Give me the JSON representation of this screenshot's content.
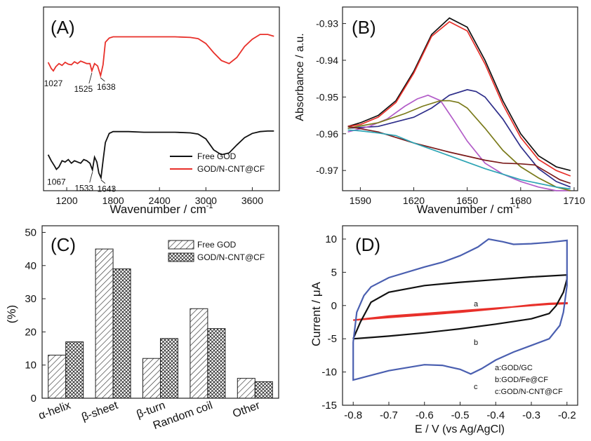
{
  "chart_data": [
    {
      "panel": "(A)",
      "type": "line",
      "xlabel": "Wavenumber / cm",
      "xlabel_sup": "-1",
      "xlim": [
        900,
        3950
      ],
      "x_ticks": [
        1200,
        1800,
        2400,
        3000,
        3600
      ],
      "y_ticks_shown": false,
      "legend_position": "bottom-right",
      "series": [
        {
          "name": "Free GOD",
          "color": "#111111",
          "x": [
            960,
            1000,
            1040,
            1067,
            1100,
            1140,
            1180,
            1220,
            1260,
            1300,
            1340,
            1380,
            1420,
            1460,
            1500,
            1533,
            1560,
            1590,
            1615,
            1643,
            1670,
            1700,
            1750,
            1800,
            1900,
            2000,
            2200,
            2400,
            2600,
            2800,
            2900,
            3000,
            3100,
            3200,
            3300,
            3400,
            3500,
            3600,
            3700,
            3800,
            3880
          ],
          "y": [
            0.5,
            0.4,
            0.32,
            0.26,
            0.3,
            0.4,
            0.38,
            0.42,
            0.36,
            0.4,
            0.38,
            0.36,
            0.42,
            0.4,
            0.36,
            0.25,
            0.46,
            0.38,
            0.2,
            0.12,
            0.4,
            0.7,
            0.85,
            0.88,
            0.88,
            0.88,
            0.87,
            0.87,
            0.87,
            0.86,
            0.84,
            0.76,
            0.58,
            0.5,
            0.53,
            0.66,
            0.78,
            0.85,
            0.88,
            0.89,
            0.89
          ]
        },
        {
          "name": "GOD/N-CNT@CF",
          "color": "#e8302a",
          "x": [
            960,
            1000,
            1027,
            1060,
            1100,
            1140,
            1180,
            1220,
            1260,
            1300,
            1340,
            1380,
            1420,
            1460,
            1500,
            1525,
            1560,
            1600,
            1638,
            1670,
            1700,
            1750,
            1800,
            1900,
            2000,
            2200,
            2400,
            2600,
            2800,
            2900,
            3000,
            3100,
            3200,
            3300,
            3400,
            3500,
            3600,
            3700,
            3800,
            3880
          ],
          "y": [
            2.02,
            1.92,
            1.88,
            1.95,
            2.0,
            1.97,
            2.02,
            1.99,
            1.98,
            2.03,
            2.0,
            2.04,
            2.02,
            2.0,
            2.0,
            1.88,
            2.0,
            1.96,
            1.8,
            1.98,
            2.35,
            2.42,
            2.44,
            2.44,
            2.44,
            2.44,
            2.44,
            2.44,
            2.43,
            2.41,
            2.33,
            2.18,
            2.05,
            2.0,
            2.1,
            2.28,
            2.4,
            2.48,
            2.48,
            2.45
          ]
        }
      ],
      "annotations": [
        {
          "label": "1027",
          "series": 1,
          "x": 1027
        },
        {
          "label": "1525",
          "series": 1,
          "x": 1525
        },
        {
          "label": "1638",
          "series": 1,
          "x": 1638
        },
        {
          "label": "1067",
          "series": 0,
          "x": 1067
        },
        {
          "label": "1533",
          "series": 0,
          "x": 1533
        },
        {
          "label": "1643",
          "series": 0,
          "x": 1643
        }
      ]
    },
    {
      "panel": "(B)",
      "type": "line",
      "xlabel": "Wavenumber / cm",
      "xlabel_sup": "-1",
      "ylabel": "Absorbance / a.u.",
      "xlim": [
        1580,
        1712
      ],
      "ylim": [
        -0.9755,
        -0.9255
      ],
      "x_ticks": [
        1590,
        1620,
        1650,
        1680,
        1710
      ],
      "y_ticks": [
        -0.93,
        -0.94,
        -0.95,
        -0.96,
        -0.97
      ],
      "y_tick_labels": [
        "-0.93",
        "-0.94",
        "-0.95",
        "-0.96",
        "-0.97"
      ],
      "series": [
        {
          "color": "#111111",
          "x": [
            1583,
            1590,
            1600,
            1610,
            1620,
            1630,
            1640,
            1650,
            1660,
            1670,
            1680,
            1690,
            1700,
            1708
          ],
          "y": [
            -0.958,
            -0.957,
            -0.955,
            -0.951,
            -0.943,
            -0.933,
            -0.9285,
            -0.931,
            -0.94,
            -0.951,
            -0.96,
            -0.966,
            -0.969,
            -0.97
          ]
        },
        {
          "color": "#e8302a",
          "x": [
            1583,
            1590,
            1600,
            1610,
            1620,
            1630,
            1640,
            1650,
            1660,
            1670,
            1680,
            1690,
            1700,
            1708
          ],
          "y": [
            -0.958,
            -0.9575,
            -0.9555,
            -0.9515,
            -0.9435,
            -0.9335,
            -0.9295,
            -0.932,
            -0.941,
            -0.952,
            -0.961,
            -0.967,
            -0.97,
            -0.9715
          ]
        },
        {
          "color": "#2e2e8a",
          "x": [
            1583,
            1600,
            1620,
            1630,
            1640,
            1650,
            1655,
            1660,
            1670,
            1680,
            1690,
            1700,
            1708
          ],
          "y": [
            -0.9585,
            -0.958,
            -0.9555,
            -0.953,
            -0.9495,
            -0.948,
            -0.9485,
            -0.95,
            -0.956,
            -0.9635,
            -0.9695,
            -0.973,
            -0.9745
          ]
        },
        {
          "color": "#b25cc8",
          "x": [
            1583,
            1595,
            1605,
            1615,
            1622,
            1628,
            1635,
            1642,
            1650,
            1660,
            1670,
            1680,
            1690,
            1700,
            1708
          ],
          "y": [
            -0.9595,
            -0.958,
            -0.956,
            -0.9525,
            -0.9505,
            -0.9495,
            -0.951,
            -0.956,
            -0.962,
            -0.968,
            -0.971,
            -0.973,
            -0.9745,
            -0.9755,
            -0.9755
          ]
        },
        {
          "color": "#7a7a1a",
          "x": [
            1583,
            1600,
            1615,
            1625,
            1635,
            1640,
            1645,
            1650,
            1660,
            1670,
            1680,
            1690,
            1700,
            1708
          ],
          "y": [
            -0.9585,
            -0.957,
            -0.9545,
            -0.9525,
            -0.951,
            -0.951,
            -0.9515,
            -0.953,
            -0.9585,
            -0.9645,
            -0.969,
            -0.972,
            -0.9745,
            -0.9755
          ]
        },
        {
          "color": "#7a1a1a",
          "x": [
            1583,
            1600,
            1620,
            1640,
            1660,
            1670,
            1680,
            1688,
            1695,
            1702,
            1708
          ],
          "y": [
            -0.958,
            -0.9595,
            -0.9625,
            -0.965,
            -0.9672,
            -0.968,
            -0.9682,
            -0.9685,
            -0.9705,
            -0.9725,
            -0.9735
          ]
        },
        {
          "color": "#2ca4b4",
          "x": [
            1583,
            1590,
            1600,
            1610,
            1620,
            1640,
            1660,
            1680,
            1700,
            1708
          ],
          "y": [
            -0.959,
            -0.9592,
            -0.9598,
            -0.9605,
            -0.9625,
            -0.966,
            -0.9695,
            -0.9725,
            -0.9745,
            -0.975
          ]
        }
      ]
    },
    {
      "panel": "(C)",
      "type": "bar",
      "ylabel": "(%)",
      "ylim": [
        0,
        52
      ],
      "y_ticks": [
        0,
        10,
        20,
        30,
        40,
        50
      ],
      "categories": [
        "α-helix",
        "β-sheet",
        "β-turn",
        "Random coil",
        "Other"
      ],
      "legend_position": "top-right",
      "series": [
        {
          "name": "Free GOD",
          "pattern": "hatch",
          "values": [
            13,
            45,
            12,
            27,
            6
          ]
        },
        {
          "name": "GOD/N-CNT@CF",
          "pattern": "crosshatch",
          "values": [
            17,
            39,
            18,
            21,
            5
          ]
        }
      ]
    },
    {
      "panel": "(D)",
      "type": "line",
      "xlabel": "E / V (vs Ag/AgCl)",
      "ylabel": "Current / μA",
      "xlim": [
        -0.83,
        -0.17
      ],
      "ylim": [
        -15,
        12
      ],
      "x_ticks": [
        -0.8,
        -0.7,
        -0.6,
        -0.5,
        -0.4,
        -0.3,
        -0.2
      ],
      "y_ticks": [
        10,
        5,
        0,
        -5,
        -10,
        -15
      ],
      "y_tick_labels": [
        "10",
        "5",
        "0",
        "-5",
        "-10",
        "-15"
      ],
      "legend_position": "bottom-right",
      "series": [
        {
          "name": "a:GOD/GC",
          "label": "a",
          "color": "#e8302a",
          "x": [
            -0.8,
            -0.7,
            -0.6,
            -0.5,
            -0.4,
            -0.3,
            -0.25,
            -0.2,
            -0.2,
            -0.25,
            -0.3,
            -0.4,
            -0.5,
            -0.6,
            -0.7,
            -0.75,
            -0.8
          ],
          "y": [
            -2.2,
            -1.6,
            -1.2,
            -0.8,
            -0.4,
            0.0,
            0.2,
            0.3,
            0.4,
            0.3,
            0.1,
            -0.5,
            -1.0,
            -1.4,
            -1.8,
            -2.0,
            -2.2
          ]
        },
        {
          "name": "b:GOD/Fe@CF",
          "label": "b",
          "color": "#111111",
          "x": [
            -0.8,
            -0.78,
            -0.75,
            -0.7,
            -0.6,
            -0.5,
            -0.4,
            -0.3,
            -0.2,
            -0.2,
            -0.21,
            -0.23,
            -0.25,
            -0.3,
            -0.4,
            -0.5,
            -0.6,
            -0.7,
            -0.8
          ],
          "y": [
            -5.0,
            -2.5,
            0.5,
            2.0,
            3.0,
            3.5,
            3.9,
            4.3,
            4.6,
            4.0,
            2.0,
            0.0,
            -1.2,
            -2.0,
            -2.8,
            -3.5,
            -4.1,
            -4.6,
            -5.0
          ]
        },
        {
          "name": "c:GOD/N-CNT@CF",
          "label": "c",
          "color": "#4a5fb0",
          "x": [
            -0.8,
            -0.79,
            -0.77,
            -0.75,
            -0.7,
            -0.6,
            -0.55,
            -0.5,
            -0.45,
            -0.42,
            -0.38,
            -0.35,
            -0.3,
            -0.25,
            -0.2,
            -0.2,
            -0.21,
            -0.22,
            -0.25,
            -0.3,
            -0.35,
            -0.4,
            -0.44,
            -0.47,
            -0.5,
            -0.55,
            -0.6,
            -0.7,
            -0.75,
            -0.8,
            -0.8,
            -0.8
          ],
          "y": [
            -5.5,
            -1.0,
            1.5,
            2.8,
            4.2,
            5.8,
            6.5,
            7.5,
            8.8,
            10.0,
            9.6,
            9.2,
            9.3,
            9.5,
            9.8,
            3.0,
            -1.0,
            -3.0,
            -5.0,
            -6.0,
            -7.0,
            -8.2,
            -9.5,
            -10.3,
            -9.6,
            -9.0,
            -8.9,
            -9.8,
            -10.5,
            -11.2,
            -9.5,
            -5.5
          ]
        }
      ]
    }
  ],
  "panels": {
    "a": {
      "label": "(A)"
    },
    "b": {
      "label": "(B)"
    },
    "c": {
      "label": "(C)"
    },
    "d": {
      "label": "(D)"
    }
  },
  "a_legend": [
    "Free GOD",
    "GOD/N-CNT@CF"
  ],
  "c_legend": [
    "Free GOD",
    "GOD/N-CNT@CF"
  ],
  "d_legend": [
    "a:GOD/GC",
    "b:GOD/Fe@CF",
    "c:GOD/N-CNT@CF"
  ],
  "d_curve_labels": [
    "a",
    "b",
    "c"
  ]
}
